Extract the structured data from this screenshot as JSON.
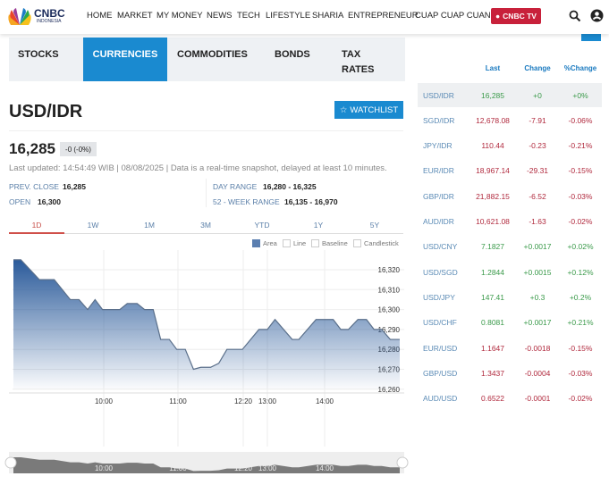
{
  "header": {
    "brand": "CNBC",
    "brand_sub": "INDONESIA",
    "nav": [
      "HOME",
      "MARKET",
      "MY MONEY",
      "NEWS",
      "TECH",
      "LIFESTYLE",
      "SHARIA",
      "ENTREPRENEUR",
      "CUAP CUAP CUAN"
    ],
    "tv_label": "CNBC TV",
    "icons": [
      "search-icon",
      "user-icon"
    ],
    "tv_color": "#c8213b"
  },
  "tabs": [
    {
      "label": "STOCKS"
    },
    {
      "label": "CURRENCIES",
      "active": true
    },
    {
      "label": "COMMODITIES"
    },
    {
      "label": "BONDS"
    },
    {
      "label": "TAX RATES"
    }
  ],
  "quote": {
    "symbol": "USD/IDR",
    "watchlist": "WATCHLIST",
    "price": "16,285",
    "change": "-0 (-0%)",
    "updated": "Last updated: 14:54:49 WIB | 08/08/2025 | Data is a real-time snapshot, delayed at least 10 minutes.",
    "stats": {
      "prev_close_label": "PREV. CLOSE",
      "prev_close": "16,285",
      "open_label": "OPEN",
      "open": "16,300",
      "day_range_label": "DAY RANGE",
      "day_range": "16,280 - 16,325",
      "week52_label": "52 - WEEK RANGE",
      "week52": "16,135 - 16,970"
    }
  },
  "periods": [
    "1D",
    "1W",
    "1M",
    "3M",
    "YTD",
    "1Y",
    "5Y"
  ],
  "active_period": "1D",
  "chart_types": [
    "Area",
    "Line",
    "Baseline",
    "Candlestick"
  ],
  "active_chart_type": "Area",
  "accent": "#1a8ad0",
  "chart_data": {
    "type": "area",
    "ylim": [
      16260,
      16325
    ],
    "yticks": [
      "16,320",
      "16,310",
      "16,300",
      "16,290",
      "16,280",
      "16,270",
      "16,260"
    ],
    "xticks": [
      "10:00",
      "11:00",
      "12:20",
      "13:00",
      "14:00"
    ],
    "grid": true,
    "points": [
      [
        "08:47",
        16325
      ],
      [
        "08:53",
        16325
      ],
      [
        "09:08",
        16315
      ],
      [
        "09:20",
        16315
      ],
      [
        "09:33",
        16305
      ],
      [
        "09:40",
        16305
      ],
      [
        "09:47",
        16300
      ],
      [
        "09:53",
        16305
      ],
      [
        "09:59",
        16300
      ],
      [
        "10:13",
        16300
      ],
      [
        "10:19",
        16303
      ],
      [
        "10:27",
        16303
      ],
      [
        "10:33",
        16300
      ],
      [
        "10:40",
        16300
      ],
      [
        "10:46",
        16285
      ],
      [
        "10:53",
        16285
      ],
      [
        "10:59",
        16280
      ],
      [
        "11:09",
        16280
      ],
      [
        "11:19",
        16270
      ],
      [
        "11:28",
        16271
      ],
      [
        "11:40",
        16271
      ],
      [
        "11:50",
        16273
      ],
      [
        "12:00",
        16280
      ],
      [
        "12:19",
        16280
      ],
      [
        "12:46",
        16290
      ],
      [
        "13:00",
        16290
      ],
      [
        "13:08",
        16295
      ],
      [
        "13:26",
        16285
      ],
      [
        "13:33",
        16285
      ],
      [
        "13:51",
        16295
      ],
      [
        "14:09",
        16295
      ],
      [
        "14:17",
        16290
      ],
      [
        "14:25",
        16290
      ],
      [
        "14:35",
        16295
      ],
      [
        "14:44",
        16295
      ],
      [
        "14:52",
        16290
      ],
      [
        "15:00",
        16290
      ],
      [
        "15:09",
        16285
      ],
      [
        "15:19",
        16285
      ]
    ]
  },
  "table": {
    "headers": [
      "Last",
      "Change",
      "%Change"
    ],
    "rows": [
      [
        "USD/IDR",
        "16,285",
        "+0",
        "+0%",
        "up"
      ],
      [
        "SGD/IDR",
        "12,678.08",
        "-7.91",
        "-0.06%",
        "down"
      ],
      [
        "JPY/IDR",
        "110.44",
        "-0.23",
        "-0.21%",
        "down"
      ],
      [
        "EUR/IDR",
        "18,967.14",
        "-29.31",
        "-0.15%",
        "down"
      ],
      [
        "GBP/IDR",
        "21,882.15",
        "-6.52",
        "-0.03%",
        "down"
      ],
      [
        "AUD/IDR",
        "10,621.08",
        "-1.63",
        "-0.02%",
        "down"
      ],
      [
        "USD/CNY",
        "7.1827",
        "+0.0017",
        "+0.02%",
        "up"
      ],
      [
        "USD/SGD",
        "1.2844",
        "+0.0015",
        "+0.12%",
        "up"
      ],
      [
        "USD/JPY",
        "147.41",
        "+0.3",
        "+0.2%",
        "up"
      ],
      [
        "USD/CHF",
        "0.8081",
        "+0.0017",
        "+0.21%",
        "up"
      ],
      [
        "EUR/USD",
        "1.1647",
        "-0.0018",
        "-0.15%",
        "down"
      ],
      [
        "GBP/USD",
        "1.3437",
        "-0.0004",
        "-0.03%",
        "down"
      ],
      [
        "AUD/USD",
        "0.6522",
        "-0.0001",
        "-0.02%",
        "down"
      ]
    ],
    "up_color": "#3a9a4a",
    "down_color": "#b0283c"
  }
}
